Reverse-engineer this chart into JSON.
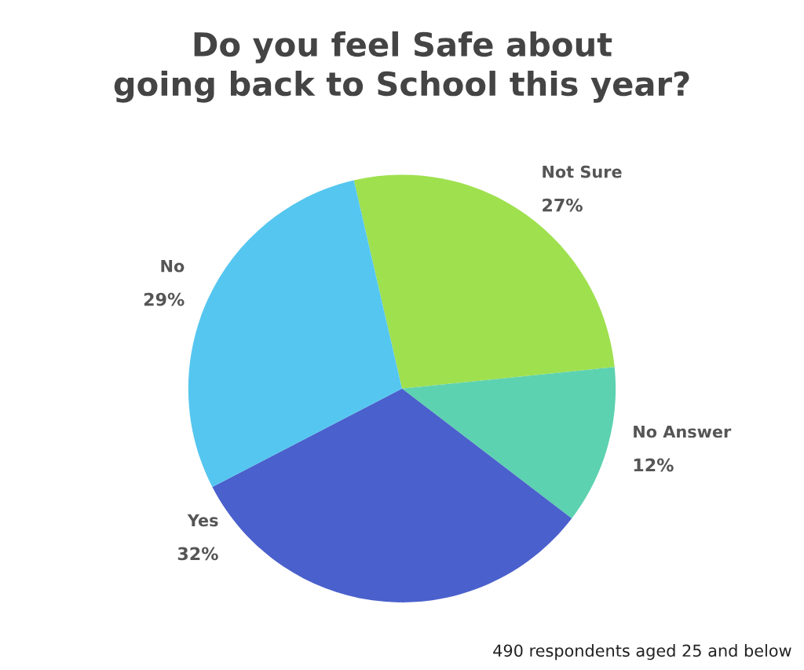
{
  "chart_data": {
    "type": "pie",
    "title": "Do you feel Safe about\ngoing back to School this year?",
    "categories": [
      "Not Sure",
      "No Answer",
      "Yes",
      "No"
    ],
    "values": [
      27,
      12,
      32,
      29
    ],
    "colors": [
      "#9fe04f",
      "#5dd2b0",
      "#4a60cc",
      "#55c6ef"
    ],
    "value_labels": [
      "27%",
      "12%",
      "32%",
      "29%"
    ],
    "annotations": [
      "490 respondents aged 25 and below"
    ]
  }
}
